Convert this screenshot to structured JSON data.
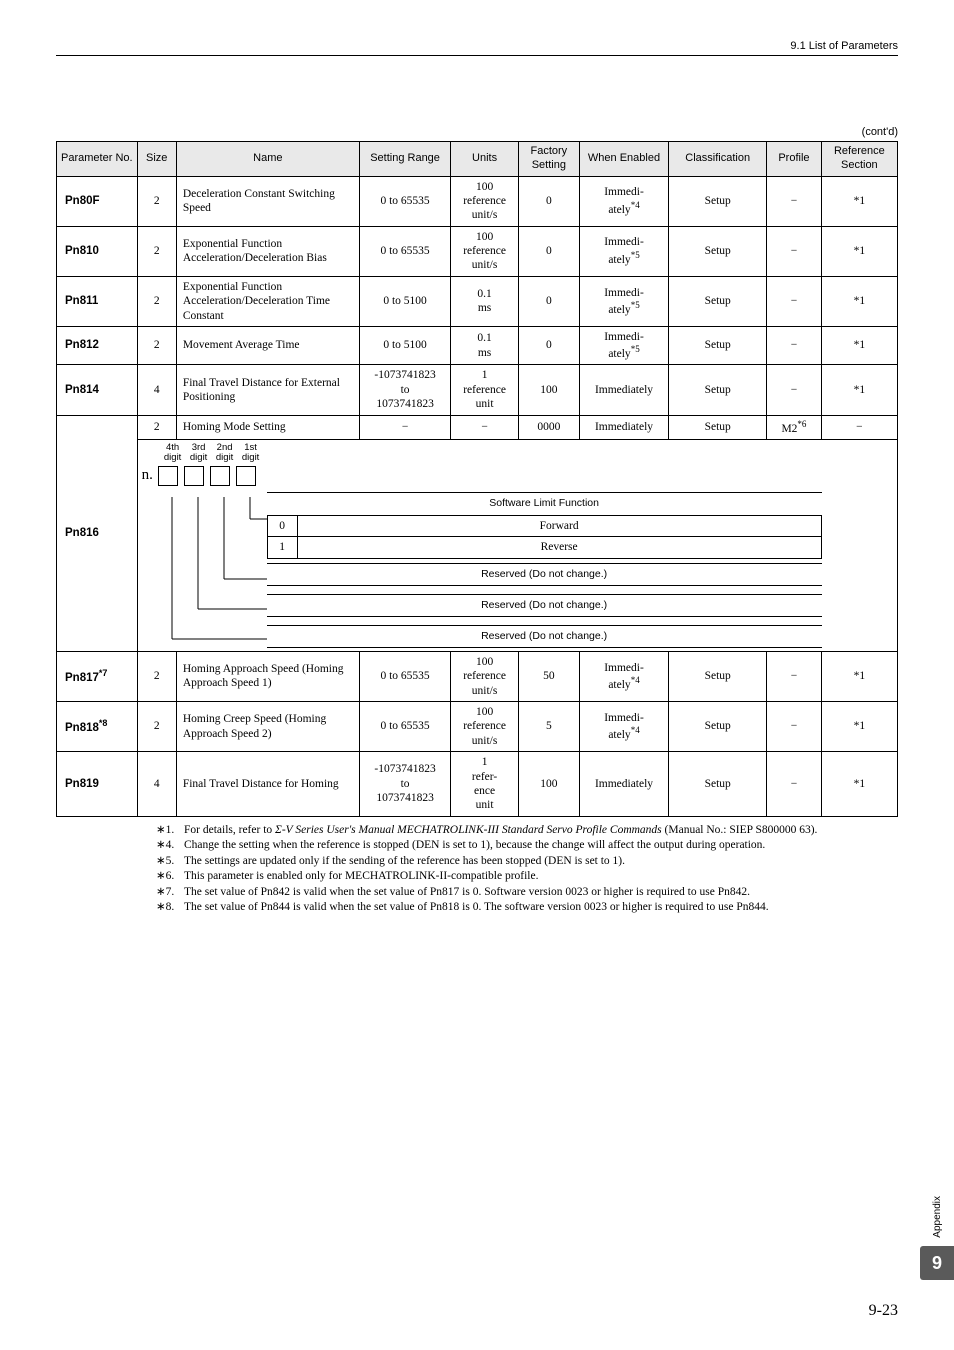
{
  "header": {
    "section": "9.1  List of Parameters"
  },
  "contd": "(cont'd)",
  "columns": {
    "no": "Parameter No.",
    "size": "Size",
    "name": "Name",
    "range": "Setting Range",
    "units": "Units",
    "factory": "Factory Setting",
    "when": "When Enabled",
    "class": "Classification",
    "profile": "Profile",
    "ref": "Reference Section"
  },
  "rows": [
    {
      "no": "Pn80F",
      "size": "2",
      "name": "Deceleration Constant Switching Speed",
      "range": "0 to 65535",
      "units": "100 reference unit/s",
      "factory": "0",
      "when": "Immediately",
      "when_sup": "*4",
      "class": "Setup",
      "profile": "−",
      "ref": "*1"
    },
    {
      "no": "Pn810",
      "size": "2",
      "name": "Exponential Function Acceleration/Deceleration Bias",
      "range": "0 to 65535",
      "units": "100 reference unit/s",
      "factory": "0",
      "when": "Immediately",
      "when_sup": "*5",
      "class": "Setup",
      "profile": "−",
      "ref": "*1"
    },
    {
      "no": "Pn811",
      "size": "2",
      "name": "Exponential Function Acceleration/Deceleration Time Constant",
      "range": "0 to 5100",
      "units": "0.1 ms",
      "factory": "0",
      "when": "Immediately",
      "when_sup": "*5",
      "class": "Setup",
      "profile": "−",
      "ref": "*1"
    },
    {
      "no": "Pn812",
      "size": "2",
      "name": "Movement Average Time",
      "range": "0 to 5100",
      "units": "0.1 ms",
      "factory": "0",
      "when": "Immediately",
      "when_sup": "*5",
      "class": "Setup",
      "profile": "−",
      "ref": "*1"
    },
    {
      "no": "Pn814",
      "size": "4",
      "name": "Final Travel Distance for External Positioning",
      "range": "-1073741823 to 1073741823",
      "units": "1 reference unit",
      "factory": "100",
      "when": "Immediately",
      "when_sup": "",
      "class": "Setup",
      "profile": "−",
      "ref": "*1"
    }
  ],
  "row816_top": {
    "size": "2",
    "name": "Homing Mode Setting",
    "range": "−",
    "units": "−",
    "factory": "0000",
    "when": "Immediately",
    "when_sup": "",
    "class": "Setup",
    "profile": "M2",
    "profile_sup": "*6",
    "ref": "−"
  },
  "pn816_label": "Pn816",
  "digits": {
    "labels": [
      "4th digit",
      "3rd digit",
      "2nd digit",
      "1st digit"
    ],
    "prefix": "n.",
    "func_title": "Software Limit Function",
    "func_rows": [
      {
        "code": "0",
        "text": "Forward"
      },
      {
        "code": "1",
        "text": "Reverse"
      }
    ],
    "reserved": "Reserved (Do not change.)"
  },
  "rows2": [
    {
      "no": "Pn817",
      "no_sup": "*7",
      "size": "2",
      "name": "Homing Approach Speed (Homing Approach Speed 1)",
      "range": "0 to 65535",
      "units": "100 reference unit/s",
      "factory": "50",
      "when": "Immediately",
      "when_sup": "*4",
      "class": "Setup",
      "profile": "−",
      "ref": "*1"
    },
    {
      "no": "Pn818",
      "no_sup": "*8",
      "size": "2",
      "name": "Homing Creep Speed (Homing Approach Speed 2)",
      "range": "0 to 65535",
      "units": "100 reference unit/s",
      "factory": "5",
      "when": "Immediately",
      "when_sup": "*4",
      "class": "Setup",
      "profile": "−",
      "ref": "*1"
    },
    {
      "no": "Pn819",
      "no_sup": "",
      "size": "4",
      "name": "Final Travel Distance for Homing",
      "range": "-1073741823 to 1073741823",
      "units": "1 reference unit",
      "factory": "100",
      "when": "Immediately",
      "when_sup": "",
      "class": "Setup",
      "profile": "−",
      "ref": "*1"
    }
  ],
  "footnotes": [
    {
      "mark": "∗1.",
      "text_pre": "For details, refer to ",
      "text_it": "Σ-V Series User's Manual MECHATROLINK-III Standard Servo Profile Commands",
      "text_post": " (Manual No.: SIEP S800000 63)."
    },
    {
      "mark": "∗4.",
      "text_pre": "Change the setting when the reference is stopped (DEN is set to 1), because the change will affect the output during operation.",
      "text_it": "",
      "text_post": ""
    },
    {
      "mark": "∗5.",
      "text_pre": "The settings are updated only if the sending of the reference has been stopped (DEN is set to 1).",
      "text_it": "",
      "text_post": ""
    },
    {
      "mark": "∗6.",
      "text_pre": "This parameter is enabled only for MECHATROLINK-II-compatible profile.",
      "text_it": "",
      "text_post": ""
    },
    {
      "mark": "∗7.",
      "text_pre": "The set value of Pn842 is valid when the set value of Pn817 is 0. Software version 0023 or higher is required to use Pn842.",
      "text_it": "",
      "text_post": ""
    },
    {
      "mark": "∗8.",
      "text_pre": "The set value of Pn844 is valid when the set value of Pn818 is 0. The software version 0023 or higher is required to use Pn844.",
      "text_it": "",
      "text_post": ""
    }
  ],
  "side": {
    "label": "Appendix",
    "num": "9"
  },
  "page": "9-23"
}
